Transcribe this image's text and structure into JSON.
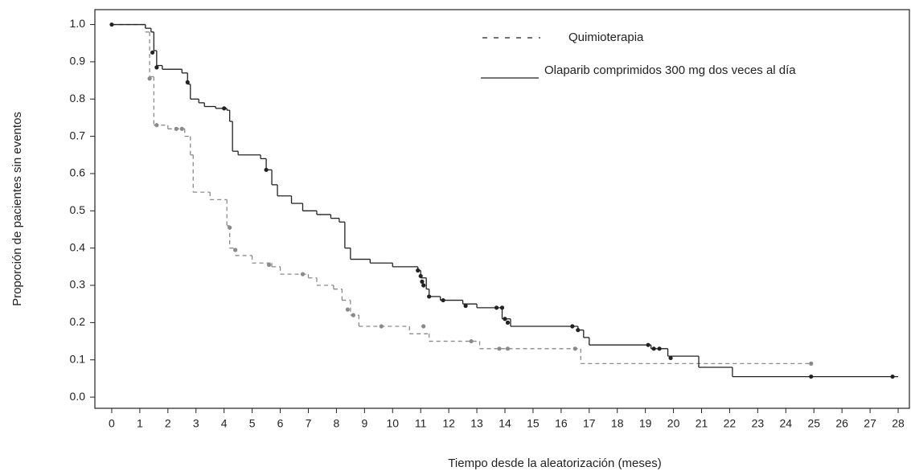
{
  "chart_data": {
    "type": "km",
    "x_label": "Tiempo desde la aleatorización (meses)",
    "y_label": "Proporción de pacientes sin eventos",
    "xlim": [
      -0.6,
      28.4
    ],
    "ylim": [
      -0.03,
      1.04
    ],
    "xticks": [
      0,
      1,
      2,
      3,
      4,
      5,
      6,
      7,
      8,
      9,
      10,
      11,
      12,
      13,
      14,
      15,
      16,
      17,
      18,
      19,
      20,
      21,
      22,
      23,
      24,
      25,
      26,
      27,
      28
    ],
    "yticks": [
      {
        "value": 0,
        "label": "0.0"
      },
      0.1,
      0.2,
      0.3,
      0.4,
      0.5,
      0.6,
      0.7,
      0.8,
      0.9,
      {
        "value": 1,
        "label": "1.0"
      }
    ],
    "series": [
      {
        "name": "Quimioterapia",
        "color": "#8a8a8a",
        "dashed": true,
        "x": [
          0,
          1.2,
          1.35,
          1.5,
          2.0,
          2.6,
          2.8,
          2.9,
          3.5,
          4.1,
          4.2,
          4.4,
          5.0,
          5.7,
          6.0,
          7.0,
          7.3,
          7.9,
          8.2,
          8.5,
          8.8,
          10.6,
          11.3,
          13.1,
          16.7,
          24.9
        ],
        "values": [
          1.0,
          0.98,
          0.86,
          0.73,
          0.72,
          0.7,
          0.65,
          0.55,
          0.53,
          0.46,
          0.4,
          0.38,
          0.36,
          0.35,
          0.33,
          0.32,
          0.3,
          0.29,
          0.26,
          0.22,
          0.19,
          0.17,
          0.15,
          0.13,
          0.09,
          0.09
        ],
        "censor_x": [
          1.35,
          1.6,
          2.3,
          2.5,
          4.2,
          4.4,
          5.6,
          6.8,
          8.4,
          8.6,
          9.6,
          11.1,
          12.8,
          13.8,
          14.1,
          16.5,
          24.9
        ],
        "censor_values": [
          0.855,
          0.73,
          0.72,
          0.72,
          0.455,
          0.395,
          0.355,
          0.33,
          0.235,
          0.22,
          0.19,
          0.19,
          0.15,
          0.13,
          0.13,
          0.13,
          0.09
        ]
      },
      {
        "name": "Olaparib comprimidos 300 mg dos veces al día",
        "color": "#222222",
        "dashed": false,
        "x": [
          0,
          1.2,
          1.4,
          1.5,
          1.6,
          1.8,
          2.5,
          2.7,
          2.8,
          3.1,
          3.3,
          3.7,
          4.1,
          4.2,
          4.3,
          4.5,
          5.3,
          5.5,
          5.7,
          5.9,
          6.4,
          6.8,
          7.3,
          7.8,
          8.1,
          8.3,
          8.5,
          9.2,
          10.0,
          10.9,
          11.0,
          11.2,
          11.3,
          11.7,
          12.5,
          13.0,
          13.9,
          14.2,
          16.6,
          16.8,
          17.0,
          19.2,
          19.8,
          20.9,
          22.1,
          28.0
        ],
        "values": [
          1.0,
          0.99,
          0.98,
          0.93,
          0.89,
          0.88,
          0.87,
          0.84,
          0.8,
          0.79,
          0.78,
          0.775,
          0.77,
          0.74,
          0.66,
          0.65,
          0.64,
          0.61,
          0.57,
          0.54,
          0.52,
          0.5,
          0.49,
          0.48,
          0.47,
          0.4,
          0.37,
          0.36,
          0.35,
          0.34,
          0.32,
          0.29,
          0.27,
          0.26,
          0.25,
          0.24,
          0.21,
          0.19,
          0.18,
          0.16,
          0.14,
          0.13,
          0.11,
          0.08,
          0.055,
          0.055
        ],
        "censor_x": [
          0,
          1.45,
          1.6,
          2.7,
          4.0,
          5.5,
          10.9,
          11.0,
          11.05,
          11.1,
          11.3,
          11.8,
          12.6,
          13.7,
          13.9,
          14.0,
          14.1,
          16.4,
          16.6,
          19.1,
          19.3,
          19.5,
          19.9,
          24.9,
          27.8
        ],
        "censor_values": [
          1.0,
          0.925,
          0.885,
          0.845,
          0.775,
          0.61,
          0.34,
          0.325,
          0.31,
          0.3,
          0.27,
          0.26,
          0.245,
          0.24,
          0.24,
          0.21,
          0.2,
          0.19,
          0.18,
          0.14,
          0.13,
          0.13,
          0.105,
          0.055,
          0.055
        ]
      }
    ]
  }
}
